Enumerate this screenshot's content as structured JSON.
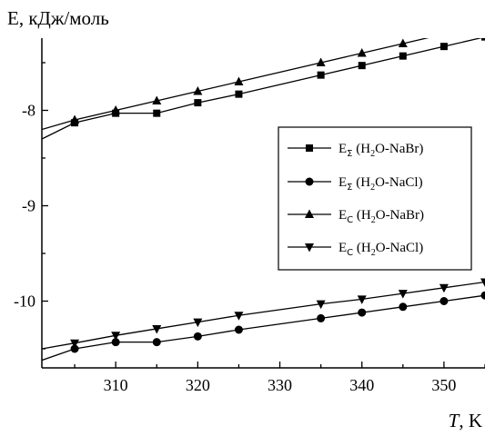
{
  "chart_data": {
    "type": "line",
    "title": "",
    "ylabel": "E, кДж/моль",
    "xlabel_italic": "T",
    "xlabel_unit": ", K",
    "xlim": [
      301,
      355
    ],
    "ylim": [
      -10.7,
      -7.3
    ],
    "xticks": [
      310,
      320,
      330,
      340,
      350
    ],
    "yticks": [
      -8,
      -9,
      -10
    ],
    "grid": false,
    "legend_position": "right-middle",
    "series": [
      {
        "name": "EΣ (H2O-NaBr)",
        "legend": {
          "main": "E",
          "sub": "Σ",
          "rest_pre": " (H",
          "sub2": "2",
          "rest_post": "O-NaBr)"
        },
        "marker": "square",
        "x": [
          305,
          310,
          315,
          320,
          325,
          335,
          340,
          345,
          350,
          355
        ],
        "y": [
          -8.13,
          -8.03,
          -8.03,
          -7.92,
          -7.83,
          -7.63,
          -7.53,
          -7.43,
          -7.33,
          -7.23
        ],
        "line_start": {
          "x": 301,
          "y": -8.3
        }
      },
      {
        "name": "EΣ (H2O-NaCl)",
        "legend": {
          "main": "E",
          "sub": "Σ",
          "rest_pre": " (H",
          "sub2": "2",
          "rest_post": "O-NaCl)"
        },
        "marker": "circle",
        "x": [
          305,
          310,
          315,
          320,
          325,
          335,
          340,
          345,
          350,
          355
        ],
        "y": [
          -10.5,
          -10.43,
          -10.43,
          -10.37,
          -10.3,
          -10.18,
          -10.12,
          -10.06,
          -10.0,
          -9.94
        ],
        "line_start": {
          "x": 301,
          "y": -10.62
        }
      },
      {
        "name": "EC (H2O-NaBr)",
        "legend": {
          "main": "E",
          "sub": "C",
          "rest_pre": " (H",
          "sub2": "2",
          "rest_post": "O-NaBr)"
        },
        "marker": "triangle-up",
        "x": [
          305,
          310,
          315,
          320,
          325,
          335,
          340,
          345,
          350,
          355
        ],
        "y": [
          -8.1,
          -8.0,
          -7.9,
          -7.8,
          -7.7,
          -7.5,
          -7.4,
          -7.3,
          -7.2,
          -7.1
        ],
        "line_start": {
          "x": 301,
          "y": -8.2
        }
      },
      {
        "name": "EC (H2O-NaCl)",
        "legend": {
          "main": "E",
          "sub": "C",
          "rest_pre": " (H",
          "sub2": "2",
          "rest_post": "O-NaCl)"
        },
        "marker": "triangle-down",
        "x": [
          305,
          310,
          315,
          320,
          325,
          335,
          340,
          345,
          350,
          355
        ],
        "y": [
          -10.44,
          -10.36,
          -10.29,
          -10.22,
          -10.15,
          -10.03,
          -9.98,
          -9.92,
          -9.86,
          -9.8
        ],
        "line_start": {
          "x": 301,
          "y": -10.5
        }
      }
    ]
  }
}
